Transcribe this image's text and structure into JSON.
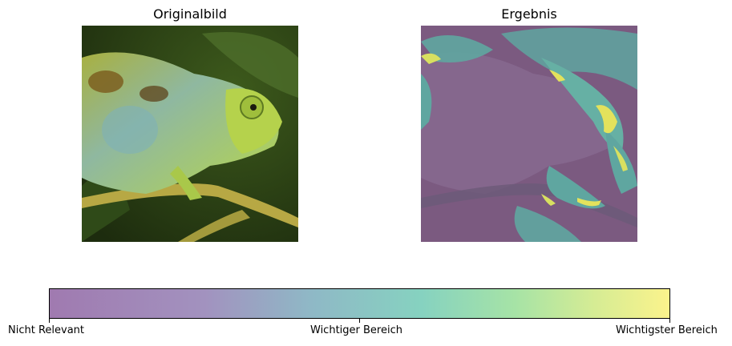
{
  "panels": {
    "left_title": "Originalbild",
    "right_title": "Ergebnis"
  },
  "colorbar": {
    "tick_labels": [
      "Nicht Relevant",
      "Wichtiger Bereich",
      "Wichtigster Bereich"
    ],
    "colors": [
      "#a07ab0",
      "#86d2c0",
      "#fbf38c"
    ]
  },
  "images": {
    "left_subject": "chameleon-photo",
    "right_subject": "attribution-heatmap-overlay"
  }
}
